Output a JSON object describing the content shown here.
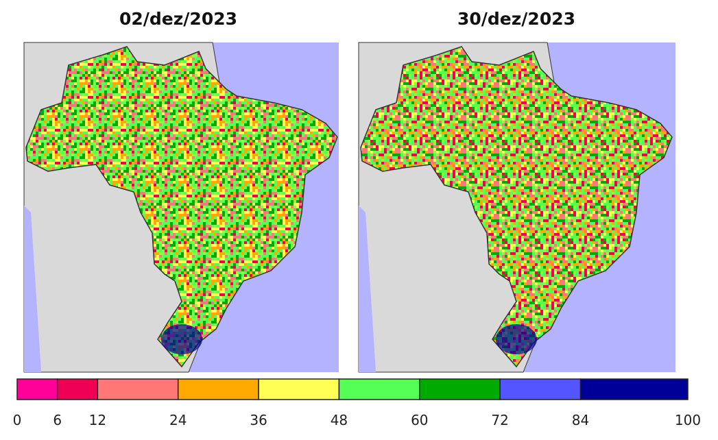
{
  "maps": [
    {
      "title": "02/dez/2023"
    },
    {
      "title": "30/dez/2023"
    }
  ],
  "legend": {
    "bins": [
      0,
      6,
      12,
      24,
      36,
      48,
      60,
      72,
      84,
      100
    ],
    "colors": [
      "#ff0099",
      "#ee0055",
      "#ff7777",
      "#ffaa00",
      "#ffff55",
      "#55ff55",
      "#00aa00",
      "#5555ff",
      "#000099"
    ]
  }
}
